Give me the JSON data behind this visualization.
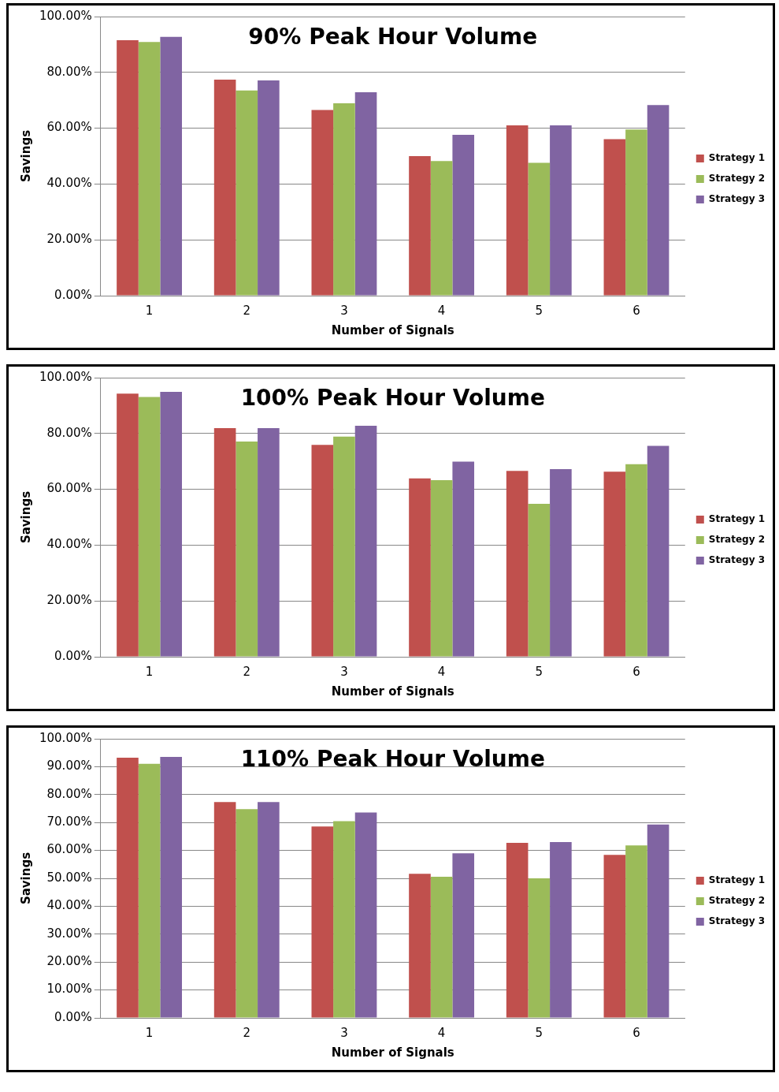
{
  "chart_data": [
    {
      "type": "bar",
      "title": "90% Peak Hour Volume",
      "xlabel": "Number of Signals",
      "ylabel": "Savings",
      "categories": [
        "1",
        "2",
        "3",
        "4",
        "5",
        "6"
      ],
      "series": [
        {
          "name": "Strategy 1",
          "color": "#c0504d",
          "values": [
            91.5,
            77.4,
            66.5,
            50.0,
            61.0,
            56.1
          ]
        },
        {
          "name": "Strategy 2",
          "color": "#9bbb59",
          "values": [
            90.9,
            73.5,
            68.9,
            48.2,
            47.6,
            59.5
          ]
        },
        {
          "name": "Strategy 3",
          "color": "#8064a2",
          "values": [
            92.7,
            77.1,
            72.9,
            57.6,
            61.0,
            68.3
          ]
        }
      ],
      "ylim": [
        0,
        100
      ],
      "yticks": [
        {
          "value": 0,
          "label": "0.00%"
        },
        {
          "value": 20,
          "label": "20.00%"
        },
        {
          "value": 40,
          "label": "40.00%"
        },
        {
          "value": 60,
          "label": "60.00%"
        },
        {
          "value": 80,
          "label": "80.00%"
        },
        {
          "value": 100,
          "label": "100.00%"
        }
      ],
      "grid": "y",
      "legend": "right"
    },
    {
      "type": "bar",
      "title": "100% Peak Hour Volume",
      "xlabel": "Number of Signals",
      "ylabel": "Savings",
      "categories": [
        "1",
        "2",
        "3",
        "4",
        "5",
        "6"
      ],
      "series": [
        {
          "name": "Strategy 1",
          "color": "#c0504d",
          "values": [
            94.3,
            81.9,
            75.9,
            63.9,
            66.6,
            66.3
          ]
        },
        {
          "name": "Strategy 2",
          "color": "#9bbb59",
          "values": [
            93.1,
            77.1,
            78.9,
            63.3,
            54.8,
            69.0
          ]
        },
        {
          "name": "Strategy 3",
          "color": "#8064a2",
          "values": [
            94.9,
            81.9,
            82.8,
            69.9,
            67.2,
            75.6
          ]
        }
      ],
      "ylim": [
        0,
        100
      ],
      "yticks": [
        {
          "value": 0,
          "label": "0.00%"
        },
        {
          "value": 20,
          "label": "20.00%"
        },
        {
          "value": 40,
          "label": "40.00%"
        },
        {
          "value": 60,
          "label": "60.00%"
        },
        {
          "value": 80,
          "label": "80.00%"
        },
        {
          "value": 100,
          "label": "100.00%"
        }
      ],
      "grid": "y",
      "legend": "right"
    },
    {
      "type": "bar",
      "title": "110% Peak Hour Volume",
      "xlabel": "Number of Signals",
      "ylabel": "Savings",
      "categories": [
        "1",
        "2",
        "3",
        "4",
        "5",
        "6"
      ],
      "series": [
        {
          "name": "Strategy 1",
          "color": "#c0504d",
          "values": [
            93.2,
            77.3,
            68.6,
            51.6,
            62.7,
            58.4
          ]
        },
        {
          "name": "Strategy 2",
          "color": "#9bbb59",
          "values": [
            91.0,
            74.8,
            70.5,
            50.6,
            50.0,
            61.8
          ]
        },
        {
          "name": "Strategy 3",
          "color": "#8064a2",
          "values": [
            93.5,
            77.3,
            73.6,
            59.0,
            63.0,
            69.3
          ]
        }
      ],
      "ylim": [
        0,
        100
      ],
      "yticks": [
        {
          "value": 0,
          "label": "0.00%"
        },
        {
          "value": 10,
          "label": "10.00%"
        },
        {
          "value": 20,
          "label": "20.00%"
        },
        {
          "value": 30,
          "label": "30.00%"
        },
        {
          "value": 40,
          "label": "40.00%"
        },
        {
          "value": 50,
          "label": "50.00%"
        },
        {
          "value": 60,
          "label": "60.00%"
        },
        {
          "value": 70,
          "label": "70.00%"
        },
        {
          "value": 80,
          "label": "80.00%"
        },
        {
          "value": 90,
          "label": "90.00%"
        },
        {
          "value": 100,
          "label": "100.00%"
        }
      ],
      "grid": "y",
      "legend": "right"
    }
  ]
}
